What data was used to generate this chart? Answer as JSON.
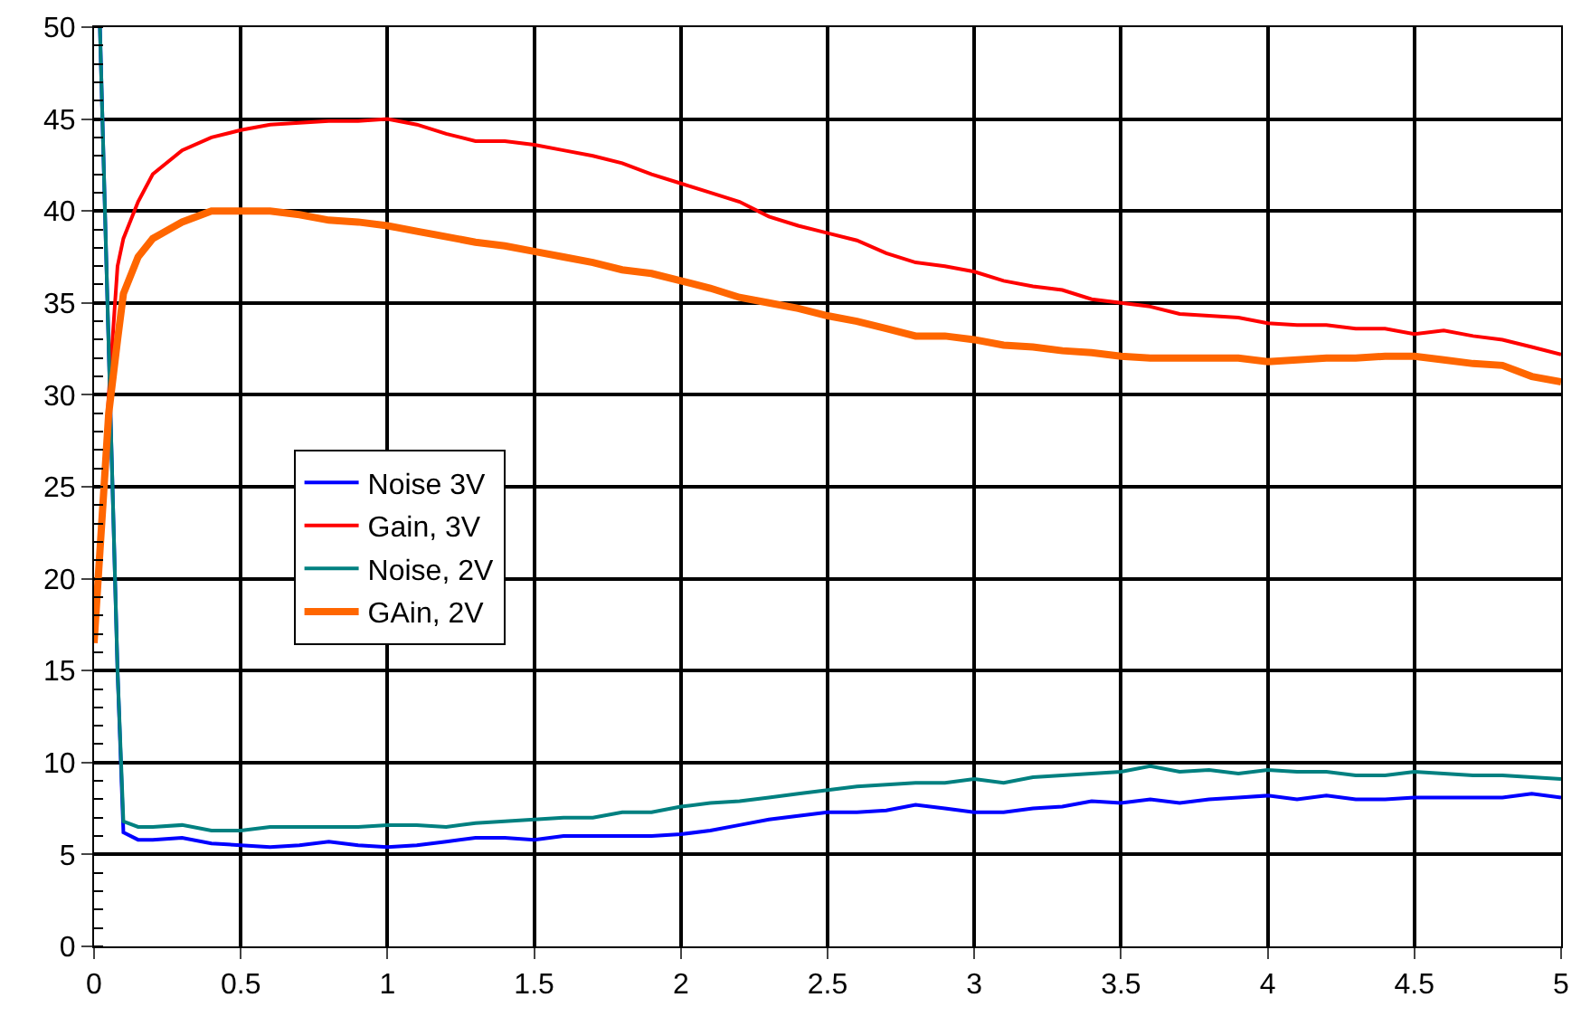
{
  "chart_data": {
    "type": "line",
    "xlim": [
      0,
      5
    ],
    "ylim": [
      0,
      50
    ],
    "xticks": [
      0,
      0.5,
      1,
      1.5,
      2,
      2.5,
      3,
      3.5,
      4,
      4.5,
      5
    ],
    "yticks": [
      0,
      5,
      10,
      15,
      20,
      25,
      30,
      35,
      40,
      45,
      50
    ],
    "grid": true,
    "legend": "left",
    "marker": "none",
    "line_style": "solid",
    "series": [
      {
        "name": "Noise 3V",
        "color": "#0000ff",
        "x": [
          0.02,
          0.08,
          0.1,
          0.15,
          0.2,
          0.3,
          0.4,
          0.5,
          0.6,
          0.7,
          0.8,
          0.9,
          1.0,
          1.1,
          1.2,
          1.3,
          1.4,
          1.5,
          1.6,
          1.7,
          1.8,
          1.9,
          2.0,
          2.1,
          2.2,
          2.3,
          2.4,
          2.5,
          2.6,
          2.7,
          2.8,
          2.9,
          3.0,
          3.1,
          3.2,
          3.3,
          3.4,
          3.5,
          3.6,
          3.7,
          3.8,
          3.9,
          4.0,
          4.1,
          4.2,
          4.3,
          4.4,
          4.5,
          4.6,
          4.7,
          4.8,
          4.9,
          5.0
        ],
        "values": [
          50,
          15,
          6.2,
          5.8,
          5.8,
          5.9,
          5.6,
          5.5,
          5.4,
          5.5,
          5.7,
          5.5,
          5.4,
          5.5,
          5.7,
          5.9,
          5.9,
          5.8,
          6.0,
          6.0,
          6.0,
          6.0,
          6.1,
          6.3,
          6.6,
          6.9,
          7.1,
          7.3,
          7.3,
          7.4,
          7.7,
          7.5,
          7.3,
          7.3,
          7.5,
          7.6,
          7.9,
          7.8,
          8.0,
          7.8,
          8.0,
          8.1,
          8.2,
          8.0,
          8.2,
          8.0,
          8.0,
          8.1,
          8.1,
          8.1,
          8.1,
          8.3,
          8.1
        ]
      },
      {
        "name": "Gain, 3V",
        "color": "#ff0000",
        "x": [
          0,
          0.05,
          0.08,
          0.1,
          0.15,
          0.2,
          0.3,
          0.4,
          0.5,
          0.6,
          0.7,
          0.8,
          0.9,
          1.0,
          1.1,
          1.2,
          1.3,
          1.4,
          1.5,
          1.6,
          1.7,
          1.8,
          1.9,
          2.0,
          2.1,
          2.2,
          2.3,
          2.4,
          2.5,
          2.6,
          2.7,
          2.8,
          2.9,
          3.0,
          3.1,
          3.2,
          3.3,
          3.4,
          3.5,
          3.6,
          3.7,
          3.8,
          3.9,
          4.0,
          4.1,
          4.2,
          4.3,
          4.4,
          4.5,
          4.6,
          4.7,
          4.8,
          4.9,
          5.0
        ],
        "values": [
          17,
          30,
          37,
          38.5,
          40.5,
          42,
          43.3,
          44,
          44.4,
          44.7,
          44.8,
          44.9,
          44.9,
          45,
          44.7,
          44.2,
          43.8,
          43.8,
          43.6,
          43.3,
          43,
          42.6,
          42,
          41.5,
          41,
          40.5,
          39.7,
          39.2,
          38.8,
          38.4,
          37.7,
          37.2,
          37,
          36.7,
          36.2,
          35.9,
          35.7,
          35.2,
          35,
          34.8,
          34.4,
          34.3,
          34.2,
          33.9,
          33.8,
          33.8,
          33.6,
          33.6,
          33.3,
          33.5,
          33.2,
          33,
          32.6,
          32.2
        ]
      },
      {
        "name": "Noise, 2V",
        "color": "#008080",
        "x": [
          0.02,
          0.08,
          0.1,
          0.15,
          0.2,
          0.3,
          0.4,
          0.5,
          0.6,
          0.7,
          0.8,
          0.9,
          1.0,
          1.1,
          1.2,
          1.3,
          1.4,
          1.5,
          1.6,
          1.7,
          1.8,
          1.9,
          2.0,
          2.1,
          2.2,
          2.3,
          2.4,
          2.5,
          2.6,
          2.7,
          2.8,
          2.9,
          3.0,
          3.1,
          3.2,
          3.3,
          3.4,
          3.5,
          3.6,
          3.7,
          3.8,
          3.9,
          4.0,
          4.1,
          4.2,
          4.3,
          4.4,
          4.5,
          4.6,
          4.7,
          4.8,
          4.9,
          5.0
        ],
        "values": [
          50,
          15,
          6.8,
          6.5,
          6.5,
          6.6,
          6.3,
          6.3,
          6.5,
          6.5,
          6.5,
          6.5,
          6.6,
          6.6,
          6.5,
          6.7,
          6.8,
          6.9,
          7.0,
          7.0,
          7.3,
          7.3,
          7.6,
          7.8,
          7.9,
          8.1,
          8.3,
          8.5,
          8.7,
          8.8,
          8.9,
          8.9,
          9.1,
          8.9,
          9.2,
          9.3,
          9.4,
          9.5,
          9.8,
          9.5,
          9.6,
          9.4,
          9.6,
          9.5,
          9.5,
          9.3,
          9.3,
          9.5,
          9.4,
          9.3,
          9.3,
          9.2,
          9.1
        ]
      },
      {
        "name": "GAin, 2V",
        "color": "#ff6600",
        "x": [
          0,
          0.05,
          0.08,
          0.1,
          0.15,
          0.2,
          0.3,
          0.4,
          0.5,
          0.6,
          0.7,
          0.8,
          0.9,
          1.0,
          1.1,
          1.2,
          1.3,
          1.4,
          1.5,
          1.6,
          1.7,
          1.8,
          1.9,
          2.0,
          2.1,
          2.2,
          2.3,
          2.4,
          2.5,
          2.6,
          2.7,
          2.8,
          2.9,
          3.0,
          3.1,
          3.2,
          3.3,
          3.4,
          3.5,
          3.6,
          3.7,
          3.8,
          3.9,
          4.0,
          4.1,
          4.2,
          4.3,
          4.4,
          4.5,
          4.6,
          4.7,
          4.8,
          4.9,
          5.0
        ],
        "values": [
          16.5,
          29,
          33,
          35.5,
          37.5,
          38.5,
          39.4,
          40,
          40,
          40,
          39.8,
          39.5,
          39.4,
          39.2,
          38.9,
          38.6,
          38.3,
          38.1,
          37.8,
          37.5,
          37.2,
          36.8,
          36.6,
          36.2,
          35.8,
          35.3,
          35,
          34.7,
          34.3,
          34,
          33.6,
          33.2,
          33.2,
          33,
          32.7,
          32.6,
          32.4,
          32.3,
          32.1,
          32,
          32,
          32,
          32,
          31.8,
          31.9,
          32,
          32,
          32.1,
          32.1,
          31.9,
          31.7,
          31.6,
          31,
          30.7
        ]
      }
    ]
  }
}
